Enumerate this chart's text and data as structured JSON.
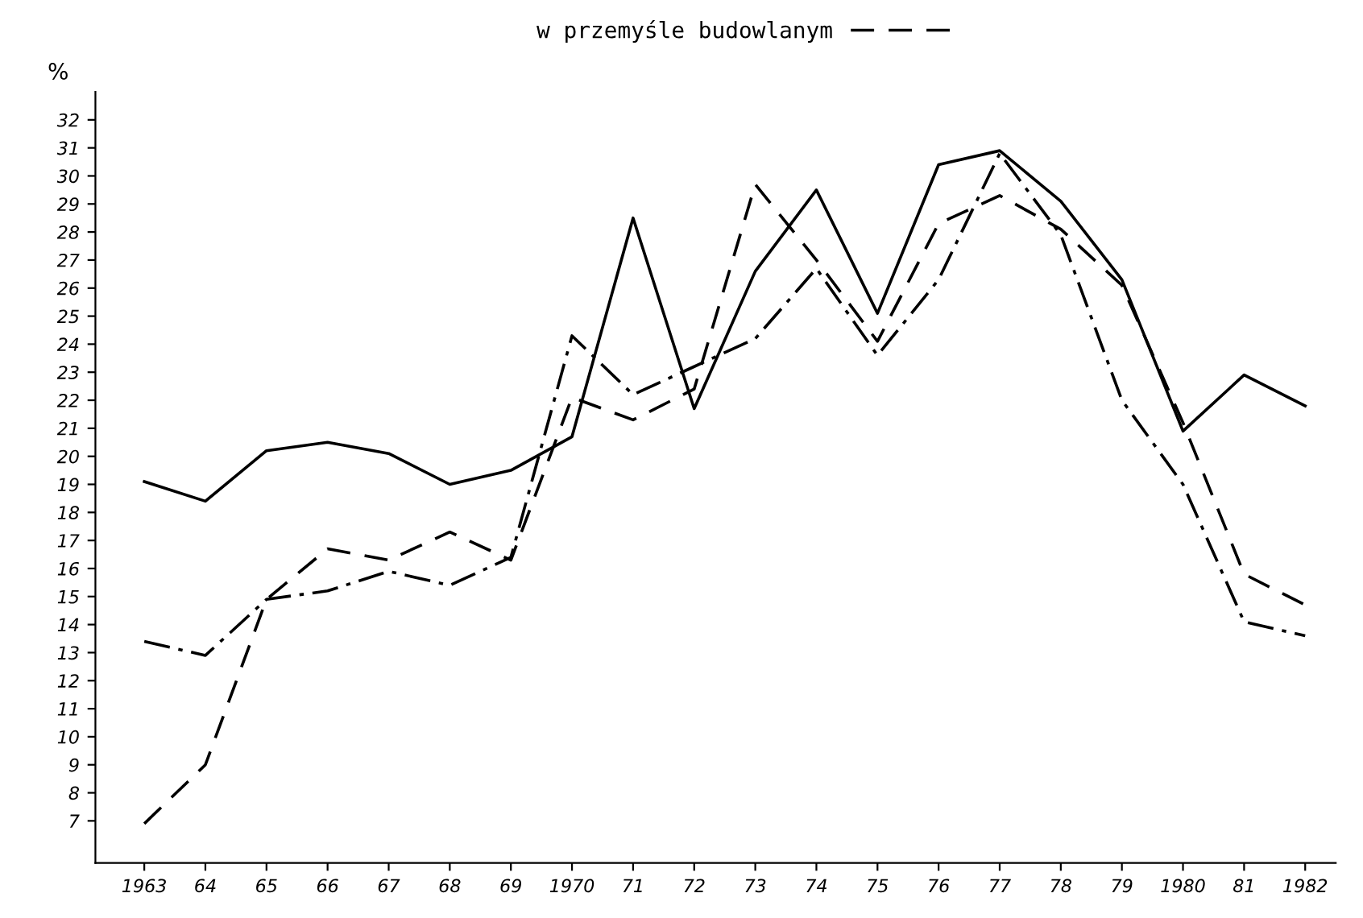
{
  "chart_data": {
    "type": "line",
    "ylabel": "%",
    "categories": [
      "1963",
      "64",
      "65",
      "66",
      "67",
      "68",
      "69",
      "1970",
      "71",
      "72",
      "73",
      "74",
      "75",
      "76",
      "77",
      "78",
      "79",
      "1980",
      "81",
      "1982"
    ],
    "series": [
      {
        "color": "#000000",
        "line_style": "solid",
        "values": [
          19.1,
          18.4,
          20.2,
          20.5,
          20.1,
          19.0,
          19.5,
          20.7,
          28.5,
          21.7,
          26.6,
          29.5,
          25.1,
          30.4,
          30.9,
          29.1,
          26.3,
          20.9,
          22.9,
          21.8
        ]
      },
      {
        "name": "w przemyśle budowlanym",
        "color": "#000000",
        "line_style": "dashed",
        "values": [
          6.9,
          9.0,
          14.9,
          16.7,
          16.3,
          17.3,
          16.3,
          22.1,
          21.3,
          22.4,
          29.7,
          27.0,
          24.1,
          28.3,
          29.3,
          28.1,
          26.1,
          21.2,
          15.8,
          14.7
        ]
      },
      {
        "color": "#000000",
        "line_style": "dashdot",
        "values": [
          13.4,
          12.9,
          14.9,
          15.2,
          15.9,
          15.4,
          16.4,
          24.3,
          22.2,
          23.2,
          24.2,
          26.7,
          23.6,
          26.3,
          30.8,
          27.9,
          22.0,
          19.0,
          14.1,
          13.6
        ]
      }
    ],
    "ylim": [
      5.5,
      33
    ],
    "yticks": [
      7,
      8,
      9,
      10,
      11,
      12,
      13,
      14,
      15,
      16,
      17,
      18,
      19,
      20,
      21,
      22,
      23,
      24,
      25,
      26,
      27,
      28,
      29,
      30,
      31,
      32
    ],
    "grid": false,
    "legend": "top"
  }
}
